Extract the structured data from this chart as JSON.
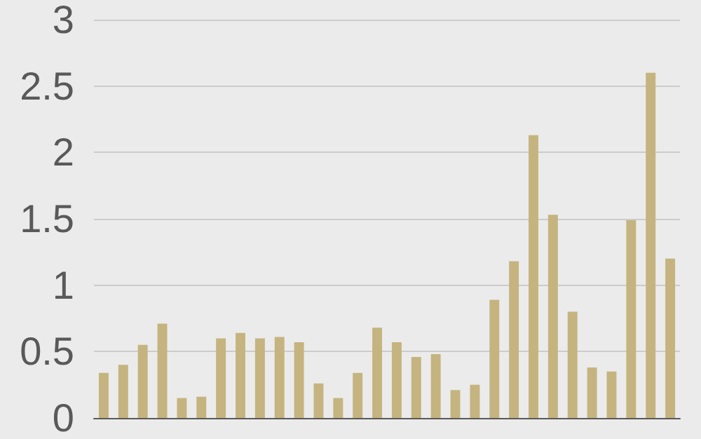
{
  "chart_data": {
    "type": "bar",
    "categories": [
      null,
      null,
      null,
      null,
      null,
      null,
      null,
      null,
      null,
      null,
      null,
      null,
      null,
      null,
      null,
      null,
      null,
      null,
      null,
      null,
      null,
      null,
      null,
      null,
      null,
      null,
      null,
      null,
      null,
      null
    ],
    "values": [
      0.34,
      0.4,
      0.55,
      0.71,
      0.15,
      0.16,
      0.6,
      0.64,
      0.6,
      0.61,
      0.57,
      0.26,
      0.15,
      0.34,
      0.68,
      0.57,
      0.46,
      0.48,
      0.21,
      0.25,
      0.89,
      1.18,
      2.13,
      1.53,
      0.8,
      0.38,
      0.35,
      1.49,
      2.6,
      1.2
    ],
    "color": "#c5b47f",
    "ylim": [
      0,
      3
    ],
    "yticks": [
      0,
      0.5,
      1,
      1.5,
      2,
      2.5,
      3
    ],
    "grid": "y"
  }
}
